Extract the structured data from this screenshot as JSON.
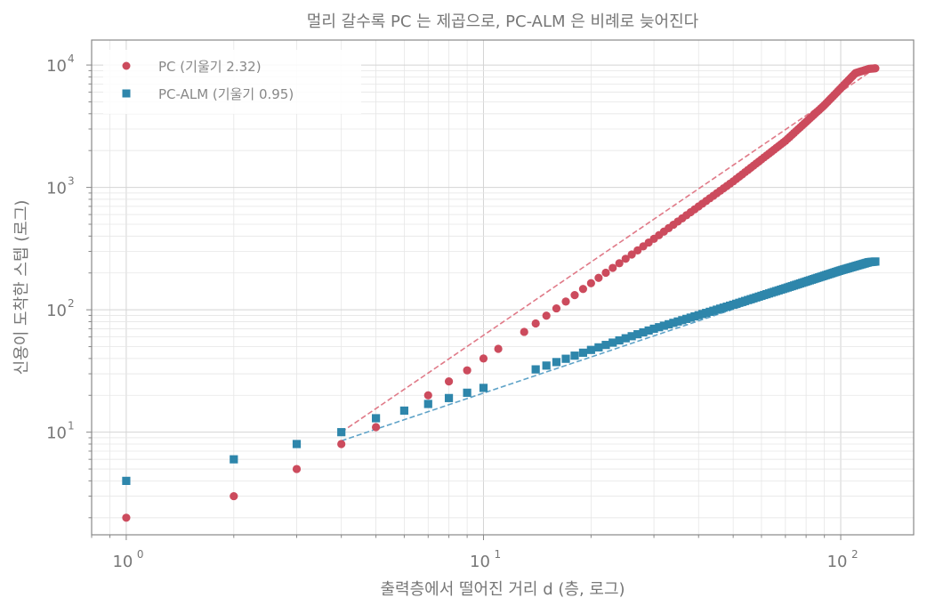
{
  "chart_data": {
    "type": "scatter",
    "title": "멀리 갈수록 PC 는 제곱으로, PC-ALM 은 비례로 늦어진다",
    "xlabel": "출력층에서 떨어진 거리 d (층, 로그)",
    "ylabel": "신용이 도착한 스텝 (로그)",
    "x_scale": "log",
    "y_scale": "log",
    "xlim": [
      0.8,
      160
    ],
    "ylim": [
      1.45,
      16000
    ],
    "x_ticks": [
      {
        "value": 1,
        "base": "10",
        "exp": "0"
      },
      {
        "value": 10,
        "base": "10",
        "exp": "1"
      },
      {
        "value": 100,
        "base": "10",
        "exp": "2"
      }
    ],
    "y_ticks": [
      {
        "value": 10,
        "base": "10",
        "exp": "1"
      },
      {
        "value": 100,
        "base": "10",
        "exp": "2"
      },
      {
        "value": 1000,
        "base": "10",
        "exp": "3"
      },
      {
        "value": 10000,
        "base": "10",
        "exp": "4"
      }
    ],
    "grid": true,
    "legend_position": "top-left",
    "series": [
      {
        "name": "PC  (기울기 2.32)",
        "marker": "circle",
        "color": "#cc4b5d",
        "x_range": [
          1,
          125
        ],
        "points": [
          [
            1,
            2
          ],
          [
            2,
            3
          ],
          [
            3,
            5
          ],
          [
            4,
            8
          ],
          [
            5,
            11
          ],
          [
            7,
            20
          ],
          [
            8,
            26
          ],
          [
            9,
            32
          ],
          [
            10,
            40
          ],
          [
            11,
            48
          ],
          [
            13,
            66
          ],
          [
            20,
            165
          ],
          [
            30,
            380
          ],
          [
            50,
            1120
          ],
          [
            70,
            2400
          ],
          [
            90,
            4700
          ],
          [
            110,
            8600
          ],
          [
            120,
            9300
          ],
          [
            125,
            9400
          ]
        ],
        "fit_line": {
          "slope": 2.32,
          "x_range": [
            4,
            125
          ],
          "y_range": [
            10,
            9400
          ],
          "color": "#e07a88"
        }
      },
      {
        "name": "PC-ALM  (기울기 0.95)",
        "marker": "square",
        "color": "#2e86ab",
        "x_range": [
          1,
          125
        ],
        "points": [
          [
            1,
            4
          ],
          [
            2,
            6
          ],
          [
            3,
            8
          ],
          [
            4,
            10
          ],
          [
            5,
            13
          ],
          [
            6,
            15
          ],
          [
            7,
            17
          ],
          [
            8,
            19
          ],
          [
            9,
            21
          ],
          [
            10,
            23
          ],
          [
            15,
            35
          ],
          [
            20,
            47
          ],
          [
            30,
            70
          ],
          [
            50,
            110
          ],
          [
            70,
            150
          ],
          [
            100,
            210
          ],
          [
            120,
            245
          ],
          [
            125,
            248
          ]
        ],
        "fit_line": {
          "slope": 0.95,
          "x_range": [
            4,
            125
          ],
          "y_range": [
            8.5,
            248
          ],
          "color": "#5fa3c8"
        }
      }
    ]
  }
}
